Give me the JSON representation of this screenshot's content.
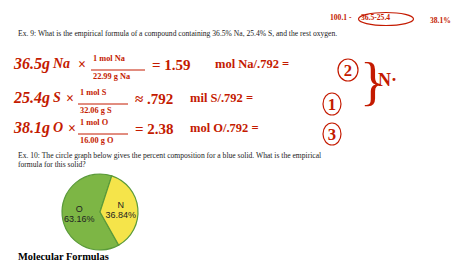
{
  "chart_data": {
    "type": "pie",
    "categories": [
      "O",
      "N"
    ],
    "values": [
      63.16,
      36.84
    ],
    "value_labels": [
      "63.16%",
      "36.84%"
    ],
    "data_labels": true,
    "colors": [
      "#7db645",
      "#f5e44a"
    ],
    "annotations": [
      "100.1 -",
      "36.5-25.4",
      "38.1%",
      "Ex. 9: What is the empirical formula of a compound containing 36.5% Na, 25.4% S, and the rest oxygen.",
      "36.5g",
      "Na",
      "×",
      "1 mol Na",
      "22.99 g Na",
      "= 1.59",
      "mol Na/.792 =",
      "2",
      "25.4g",
      "S",
      "×",
      "1 mol S",
      "32.06 g S",
      "≈ .792",
      "mil S/.792 =",
      "1",
      "38.1g",
      "O",
      "×",
      "1 mol O",
      "16.00 g O",
      "= 2.38",
      "mol O/.792 =",
      "3",
      "}",
      "N·",
      "Ex. 10:  The circle graph below gives the percent composition for a blue solid. What is the empirical\nformula for this solid?",
      "Molecular Formulas"
    ]
  }
}
